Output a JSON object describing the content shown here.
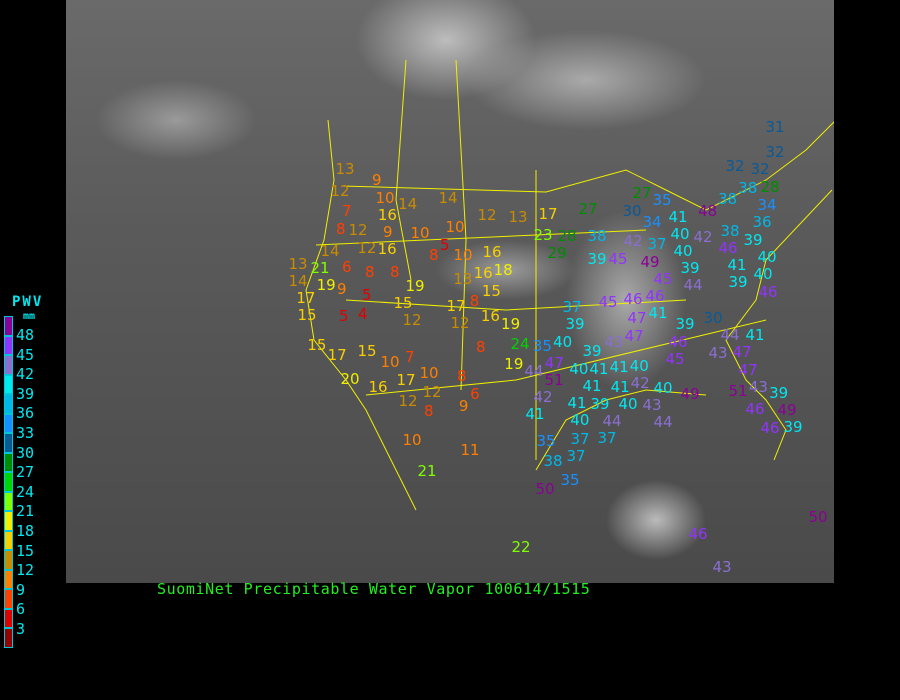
{
  "title": "SuomiNet Precipitable Water Vapor 100614/1515",
  "legend": {
    "title": "PWV",
    "unit": "mm",
    "ticks": [
      "48",
      "45",
      "42",
      "39",
      "36",
      "33",
      "30",
      "27",
      "24",
      "21",
      "18",
      "15",
      "12",
      "9",
      "6",
      "3"
    ],
    "colors": [
      "#8b0096",
      "#9333ff",
      "#8a6fd0",
      "#00e8f0",
      "#00b8e8",
      "#1890ff",
      "#0a5a96",
      "#008c00",
      "#00d400",
      "#80ff00",
      "#f0f000",
      "#f8d000",
      "#c88c00",
      "#ff8000",
      "#ff4000",
      "#e00000",
      "#960000"
    ]
  },
  "stations": [
    "13",
    "9",
    "10",
    "14",
    "14",
    "12",
    "16",
    "7",
    "8",
    "12",
    "12",
    "9",
    "16",
    "10",
    "10",
    "5",
    "12",
    "13",
    "17",
    "8",
    "10",
    "16",
    "18",
    "14",
    "13",
    "21",
    "6",
    "8",
    "8",
    "14",
    "19",
    "9",
    "5",
    "19",
    "13",
    "16",
    "15",
    "17",
    "15",
    "5",
    "4",
    "15",
    "12",
    "17",
    "8",
    "12",
    "16",
    "19",
    "15",
    "17",
    "15",
    "10",
    "7",
    "8",
    "24",
    "20",
    "16",
    "17",
    "10",
    "8",
    "19",
    "12",
    "12",
    "6",
    "8",
    "9",
    "10",
    "11",
    "21",
    "22",
    "31",
    "32",
    "32",
    "32",
    "38",
    "28",
    "27",
    "30",
    "27",
    "35",
    "34",
    "38",
    "23",
    "28",
    "29",
    "42",
    "37",
    "40",
    "41",
    "42",
    "38",
    "48",
    "38",
    "34",
    "36",
    "39",
    "45",
    "49",
    "40",
    "39",
    "46",
    "39",
    "40",
    "40",
    "41",
    "39",
    "44",
    "45",
    "46",
    "46",
    "45",
    "37",
    "41",
    "46",
    "47",
    "47",
    "39",
    "40",
    "35",
    "43",
    "39",
    "39",
    "30",
    "46",
    "44",
    "41",
    "43",
    "47",
    "45",
    "47",
    "44",
    "51",
    "40",
    "41",
    "41",
    "40",
    "42",
    "40",
    "49",
    "51",
    "47",
    "43",
    "39",
    "42",
    "41",
    "41",
    "39",
    "40",
    "43",
    "41",
    "41",
    "40",
    "44",
    "44",
    "46",
    "49",
    "46",
    "39",
    "37",
    "35",
    "37",
    "38",
    "37",
    "35",
    "50",
    "50",
    "46",
    "43"
  ]
}
